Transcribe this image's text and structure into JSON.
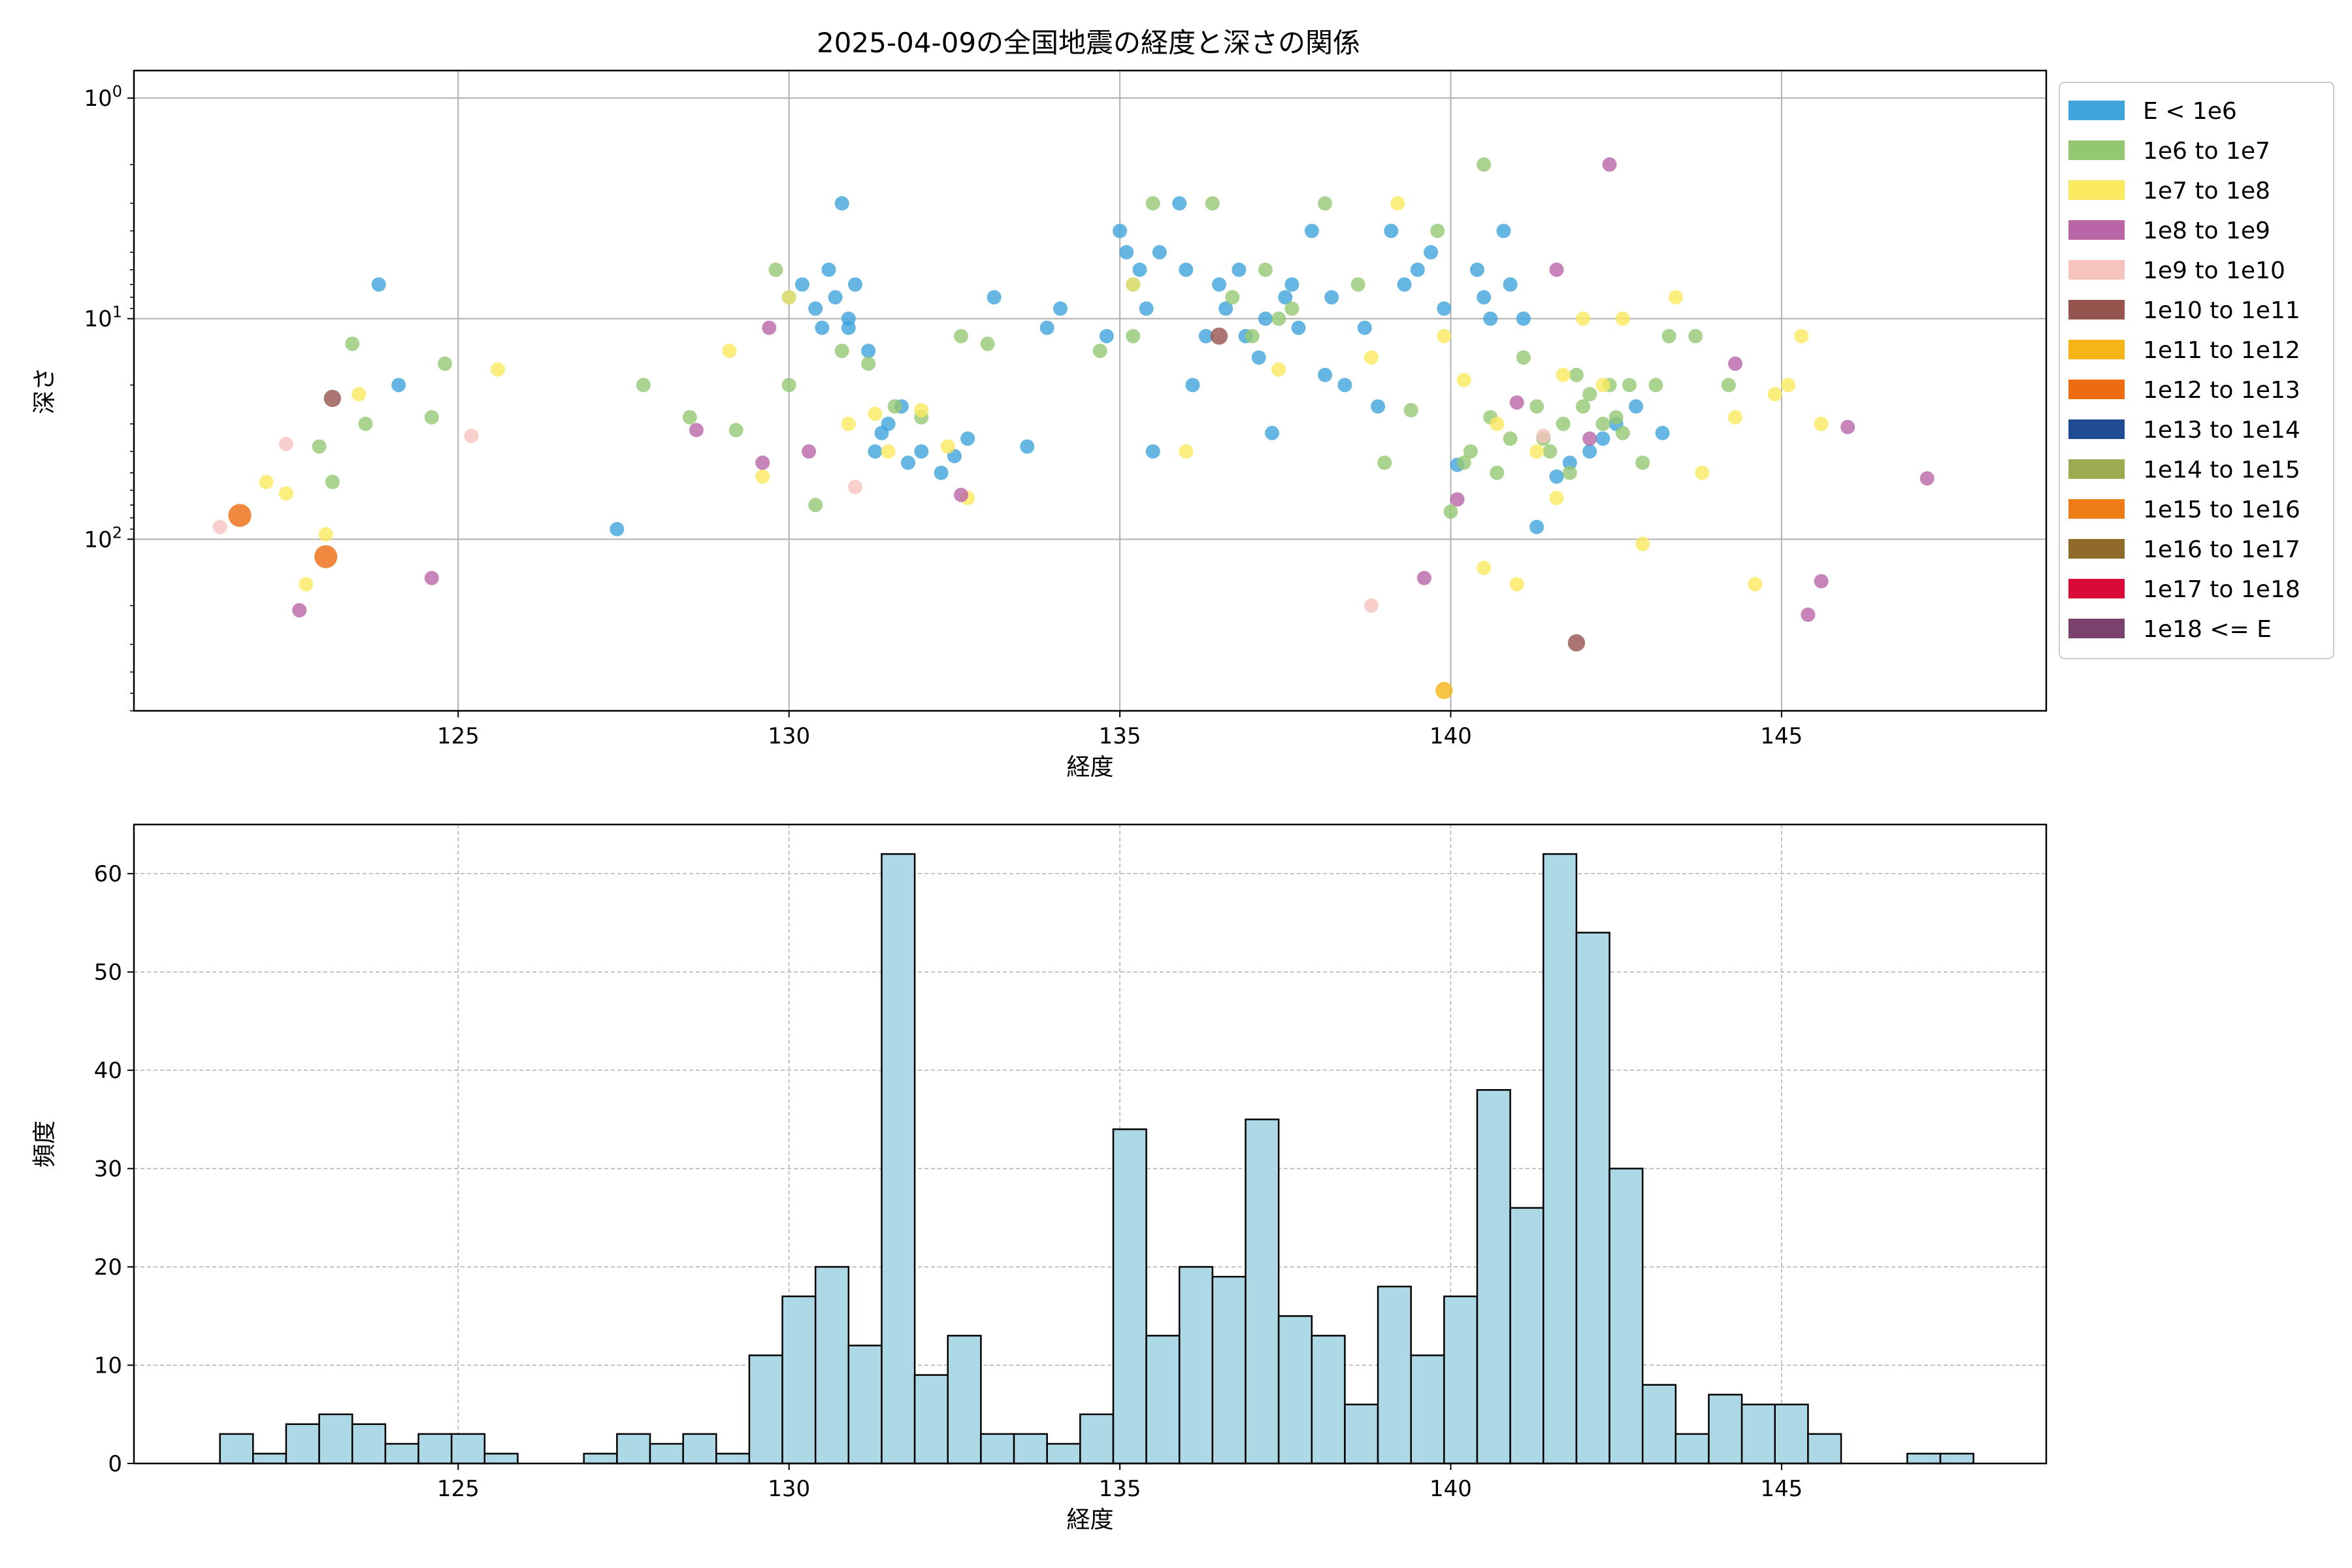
{
  "figure_title": "2025-04-09の全国地震の経度と深さの関係",
  "chart_data": [
    {
      "type": "scatter",
      "title": "2025-04-09の全国地震の経度と深さの関係",
      "xlabel": "経度",
      "ylabel": "深さ",
      "y_scale": "log",
      "y_inverted": true,
      "xlim": [
        120.1,
        149.0
      ],
      "ylim": [
        600,
        0.75
      ],
      "x_ticks": [
        125,
        130,
        135,
        140,
        145
      ],
      "x_tick_labels": [
        "125",
        "130",
        "135",
        "140",
        "145"
      ],
      "y_ticks": [
        1,
        10,
        100
      ],
      "y_tick_labels": [
        "10^0",
        "10^1",
        "10^2"
      ],
      "grid": true,
      "legend_position": "outside-right-top",
      "legend": [
        {
          "label": "E < 1e6",
          "color": "#3fa4dc"
        },
        {
          "label": "1e6 to 1e7",
          "color": "#93c872"
        },
        {
          "label": "1e7 to 1e8",
          "color": "#fbe95f"
        },
        {
          "label": "1e8 to 1e9",
          "color": "#b965a7"
        },
        {
          "label": "1e9 to 1e10",
          "color": "#f6c3bd"
        },
        {
          "label": "1e10 to 1e11",
          "color": "#96544f"
        },
        {
          "label": "1e11 to 1e12",
          "color": "#f5b417"
        },
        {
          "label": "1e12 to 1e13",
          "color": "#ec6c0f"
        },
        {
          "label": "1e13 to 1e14",
          "color": "#204b93"
        },
        {
          "label": "1e14 to 1e15",
          "color": "#9bab52"
        },
        {
          "label": "1e15 to 1e16",
          "color": "#ed7b16"
        },
        {
          "label": "1e16 to 1e17",
          "color": "#8f6a2b"
        },
        {
          "label": "1e17 to 1e18",
          "color": "#d90938"
        },
        {
          "label": "1e18 <= E",
          "color": "#7a416c"
        }
      ],
      "series": [
        {
          "name": "E < 1e6",
          "color": "#3fa4dc",
          "size": 5,
          "x": [
            123.8,
            124.1,
            127.4,
            130.0,
            130.2,
            130.4,
            130.5,
            130.6,
            130.7,
            130.8,
            130.9,
            131.0,
            131.2,
            131.4,
            131.5,
            131.7,
            131.8,
            132.0,
            132.3,
            132.5,
            132.7,
            133.1,
            133.6,
            133.9,
            134.1,
            134.8,
            135.0,
            135.1,
            135.2,
            135.3,
            135.4,
            135.5,
            135.6,
            135.9,
            136.1,
            136.3,
            136.5,
            136.6,
            136.8,
            136.9,
            137.1,
            137.2,
            137.3,
            137.5,
            137.7,
            137.9,
            138.1,
            138.2,
            138.4,
            138.7,
            138.9,
            139.1,
            139.3,
            139.5,
            139.7,
            139.9,
            140.1,
            140.4,
            140.5,
            140.6,
            140.8,
            140.9,
            141.1,
            141.3,
            141.6,
            141.8,
            142.1,
            142.3,
            142.5,
            142.8,
            143.2,
            131.3,
            130.9,
            136.0,
            137.6
          ],
          "y": [
            7,
            20,
            90,
            8,
            7,
            9,
            11,
            6,
            8,
            3,
            10,
            7,
            14,
            33,
            30,
            25,
            45,
            40,
            50,
            42,
            35,
            8,
            38,
            11,
            9,
            12,
            4,
            5,
            7,
            6,
            9,
            40,
            5,
            3,
            20,
            12,
            7,
            9,
            6,
            12,
            15,
            10,
            33,
            8,
            11,
            4,
            18,
            8,
            20,
            11,
            25,
            4,
            7,
            6,
            5,
            9,
            46,
            6,
            8,
            10,
            4,
            7,
            10,
            88,
            52,
            45,
            40,
            35,
            30,
            25,
            33,
            40,
            11,
            6,
            7
          ]
        },
        {
          "name": "1e6 to 1e7",
          "color": "#93c872",
          "size": 5,
          "x": [
            122.9,
            123.1,
            123.4,
            123.6,
            124.6,
            124.8,
            127.8,
            128.5,
            129.2,
            129.8,
            130.0,
            130.4,
            130.8,
            131.2,
            131.6,
            132.0,
            132.6,
            133.0,
            134.7,
            135.2,
            135.5,
            136.4,
            136.7,
            137.0,
            137.2,
            137.4,
            137.6,
            138.1,
            138.6,
            139.0,
            139.4,
            139.8,
            140.0,
            140.3,
            140.5,
            140.7,
            140.9,
            141.1,
            141.3,
            141.5,
            141.7,
            141.9,
            142.1,
            142.3,
            142.5,
            142.7,
            142.9,
            143.1,
            143.3,
            143.7,
            144.2,
            140.2,
            141.8,
            142.4,
            140.6,
            141.4,
            142.0,
            142.6
          ],
          "y": [
            38,
            55,
            13,
            30,
            28,
            16,
            20,
            28,
            32,
            6,
            20,
            70,
            14,
            16,
            25,
            28,
            12,
            13,
            14,
            12,
            3,
            3,
            8,
            12,
            6,
            10,
            9,
            3,
            7,
            45,
            26,
            4,
            75,
            40,
            2,
            50,
            35,
            15,
            25,
            40,
            30,
            18,
            22,
            30,
            28,
            20,
            45,
            20,
            12,
            12,
            20,
            45,
            50,
            20,
            28,
            35,
            25,
            33
          ]
        },
        {
          "name": "1e7 to 1e8",
          "color": "#fbe95f",
          "size": 5,
          "x": [
            122.1,
            122.4,
            122.7,
            123.0,
            123.5,
            125.6,
            129.1,
            129.6,
            130.0,
            130.9,
            131.3,
            131.5,
            132.0,
            132.4,
            132.7,
            136.0,
            137.4,
            138.8,
            139.2,
            139.9,
            140.2,
            140.7,
            141.0,
            141.3,
            141.7,
            142.0,
            142.3,
            142.6,
            142.9,
            143.4,
            143.8,
            144.3,
            144.6,
            144.9,
            145.1,
            145.3,
            145.6,
            135.2,
            140.5,
            141.6
          ],
          "y": [
            55,
            62,
            160,
            95,
            22,
            17,
            14,
            52,
            8,
            30,
            27,
            40,
            26,
            38,
            65,
            40,
            17,
            15,
            3,
            12,
            19,
            30,
            160,
            40,
            18,
            10,
            20,
            10,
            105,
            8,
            50,
            28,
            160,
            22,
            20,
            12,
            30,
            7,
            135,
            65
          ]
        },
        {
          "name": "1e8 to 1e9",
          "color": "#b965a7",
          "size": 5,
          "x": [
            122.6,
            124.6,
            128.6,
            129.6,
            130.3,
            132.6,
            139.6,
            140.1,
            141.0,
            141.6,
            142.1,
            142.4,
            144.3,
            145.4,
            145.6,
            146.0,
            147.2,
            129.7
          ],
          "y": [
            210,
            150,
            32,
            45,
            40,
            63,
            150,
            66,
            24,
            6,
            35,
            2,
            16,
            220,
            155,
            31,
            53,
            11
          ]
        },
        {
          "name": "1e9 to 1e10",
          "color": "#f6c3bd",
          "size": 5,
          "x": [
            121.4,
            122.4,
            125.2,
            131.0,
            138.8,
            141.4
          ],
          "y": [
            88,
            37,
            34,
            58,
            200,
            34
          ]
        },
        {
          "name": "1e10 to 1e11",
          "color": "#96544f",
          "size": 6,
          "x": [
            123.1,
            136.5,
            141.9
          ],
          "y": [
            23,
            12,
            295
          ]
        },
        {
          "name": "1e11 to 1e12",
          "color": "#f5b417",
          "size": 6,
          "x": [
            139.9
          ],
          "y": [
            485
          ]
        },
        {
          "name": "1e12 to 1e13",
          "color": "#ec6c0f",
          "size": 8,
          "x": [
            121.7,
            123.0
          ],
          "y": [
            78,
            120
          ]
        }
      ]
    },
    {
      "type": "bar",
      "title": "",
      "xlabel": "経度",
      "ylabel": "頻度",
      "xlim": [
        120.1,
        149.0
      ],
      "ylim": [
        0,
        65
      ],
      "x_ticks": [
        125,
        130,
        135,
        140,
        145
      ],
      "x_tick_labels": [
        "125",
        "130",
        "135",
        "140",
        "145"
      ],
      "y_ticks": [
        0,
        10,
        20,
        30,
        40,
        50,
        60
      ],
      "y_tick_labels": [
        "0",
        "10",
        "20",
        "30",
        "40",
        "50",
        "60"
      ],
      "grid": true,
      "bin_start": 121.4,
      "bin_width": 0.5,
      "bar_color": "#add8e6",
      "values": [
        3,
        1,
        4,
        5,
        4,
        2,
        3,
        3,
        1,
        0,
        0,
        1,
        3,
        2,
        3,
        1,
        11,
        17,
        20,
        12,
        62,
        9,
        13,
        3,
        3,
        2,
        5,
        34,
        13,
        20,
        19,
        35,
        15,
        13,
        6,
        18,
        11,
        17,
        38,
        26,
        62,
        54,
        30,
        8,
        3,
        7,
        6,
        6,
        3,
        0,
        0,
        1,
        1
      ]
    }
  ]
}
